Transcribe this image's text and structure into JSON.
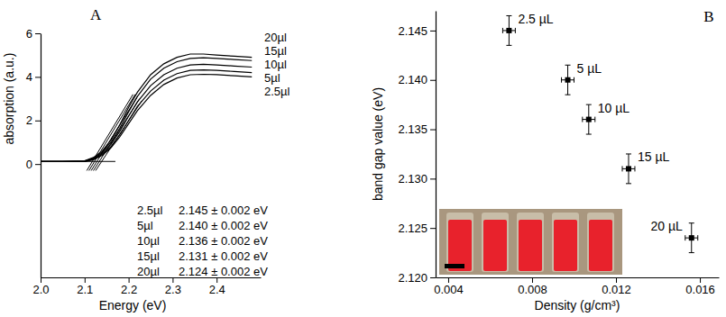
{
  "chart_data": [
    {
      "type": "line",
      "panel_label": "A",
      "x_label": "Energy (eV)",
      "y_label": "absorption (a.u.)",
      "xlim": [
        2.0,
        2.5
      ],
      "ylim": [
        -5.2,
        6
      ],
      "xticks": [
        {
          "value": 2,
          "label": "2.0"
        },
        2.1,
        2.2,
        2.3,
        2.4
      ],
      "yticks": [
        0,
        2,
        4,
        6
      ],
      "x": [
        2.0,
        2.05,
        2.1,
        2.12,
        2.14,
        2.16,
        2.18,
        2.2,
        2.22,
        2.25,
        2.28,
        2.31,
        2.34,
        2.37,
        2.4,
        2.44,
        2.48
      ],
      "series": [
        {
          "name": "20µl",
          "color": "#000000",
          "values": [
            0.12,
            0.12,
            0.15,
            0.3,
            0.6,
            1.1,
            1.8,
            2.6,
            3.3,
            4.1,
            4.6,
            4.9,
            5.05,
            5.05,
            5.0,
            4.95,
            4.9
          ],
          "fit": {
            "x": [
              2.105,
              2.21
            ],
            "y": [
              -0.3,
              3.2
            ]
          }
        },
        {
          "name": "15µl",
          "color": "#000000",
          "values": [
            0.12,
            0.12,
            0.14,
            0.27,
            0.55,
            1.0,
            1.65,
            2.4,
            3.1,
            3.9,
            4.4,
            4.7,
            4.85,
            4.88,
            4.85,
            4.8,
            4.75
          ],
          "fit": {
            "x": [
              2.11,
              2.215
            ],
            "y": [
              -0.3,
              3.2
            ]
          }
        },
        {
          "name": "10µl",
          "color": "#000000",
          "values": [
            0.12,
            0.12,
            0.13,
            0.24,
            0.5,
            0.9,
            1.5,
            2.2,
            2.85,
            3.6,
            4.1,
            4.4,
            4.55,
            4.58,
            4.55,
            4.5,
            4.45
          ],
          "fit": {
            "x": [
              2.115,
              2.22
            ],
            "y": [
              -0.3,
              3.1
            ]
          }
        },
        {
          "name": "5µl",
          "color": "#000000",
          "values": [
            0.12,
            0.12,
            0.13,
            0.22,
            0.45,
            0.8,
            1.35,
            2.0,
            2.65,
            3.35,
            3.85,
            4.15,
            4.3,
            4.32,
            4.3,
            4.25,
            4.2
          ],
          "fit": {
            "x": [
              2.12,
              2.225
            ],
            "y": [
              -0.3,
              3.0
            ]
          }
        },
        {
          "name": "2.5µl",
          "color": "#000000",
          "values": [
            0.12,
            0.12,
            0.12,
            0.2,
            0.4,
            0.75,
            1.25,
            1.85,
            2.45,
            3.15,
            3.65,
            3.95,
            4.1,
            4.12,
            4.1,
            4.05,
            4.0
          ],
          "fit": {
            "x": [
              2.125,
              2.23
            ],
            "y": [
              -0.3,
              2.9
            ]
          }
        }
      ],
      "baseline": {
        "x": [
          2.0,
          2.17
        ],
        "y": [
          0.12,
          0.12
        ]
      },
      "table": [
        [
          "2.5µl",
          "2.145 ± 0.002 eV"
        ],
        [
          "5µl",
          "2.140 ± 0.002 eV"
        ],
        [
          "10µl",
          "2.136 ± 0.002 eV"
        ],
        [
          "15µl",
          "2.131 ± 0.002 eV"
        ],
        [
          "20µl",
          "2.124 ± 0.002 eV"
        ]
      ]
    },
    {
      "type": "scatter",
      "panel_label": "B",
      "x_label": "Density (g/cm³)",
      "y_label": "band gap value (eV)",
      "xlim": [
        0.0034,
        0.0169
      ],
      "ylim": [
        2.12,
        2.147
      ],
      "xticks": [
        0.004,
        0.008,
        0.012,
        0.016
      ],
      "yticks": [
        {
          "value": 2.12,
          "label": "2.120"
        },
        2.125,
        {
          "value": 2.13,
          "label": "2.130"
        },
        2.135,
        {
          "value": 2.14,
          "label": "2.140"
        },
        2.145
      ],
      "x": [
        0.0069,
        0.0097,
        0.0107,
        0.0126,
        0.0156
      ],
      "values": [
        2.145,
        2.14,
        2.136,
        2.131,
        2.124
      ],
      "x_errors": [
        0.0003,
        0.0003,
        0.0003,
        0.0003,
        0.0003
      ],
      "errors": [
        0.0015,
        0.0015,
        0.0015,
        0.0015,
        0.0015
      ],
      "point_labels": [
        "2.5 µL",
        "5 µL",
        "10 µL",
        "15 µL",
        "20 µL"
      ],
      "color": "#000000",
      "marker": "square"
    }
  ]
}
